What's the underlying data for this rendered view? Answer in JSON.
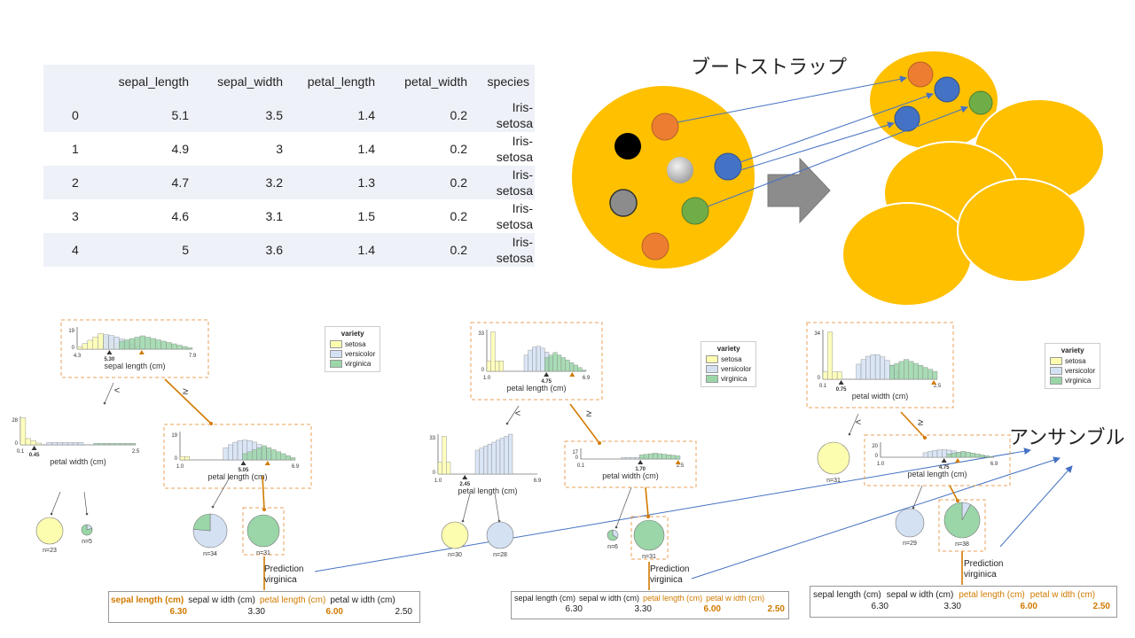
{
  "table": {
    "columns": [
      "",
      "sepal_length",
      "sepal_width",
      "petal_length",
      "petal_width",
      "species"
    ],
    "rows": [
      [
        "0",
        "5.1",
        "3.5",
        "1.4",
        "0.2",
        "Iris-setosa"
      ],
      [
        "1",
        "4.9",
        "3",
        "1.4",
        "0.2",
        "Iris-setosa"
      ],
      [
        "2",
        "4.7",
        "3.2",
        "1.3",
        "0.2",
        "Iris-setosa"
      ],
      [
        "3",
        "4.6",
        "3.1",
        "1.5",
        "0.2",
        "Iris-setosa"
      ],
      [
        "4",
        "5",
        "3.6",
        "1.4",
        "0.2",
        "Iris-setosa"
      ]
    ],
    "species_split": [
      "Iris-",
      "setosa"
    ]
  },
  "bootstrap_label": "ブートストラップ",
  "ensemble_label": "アンサンブル",
  "colors": {
    "bag": "#ffc000",
    "orange_ball": "#ed7d31",
    "blue_ball": "#4472c4",
    "green_ball": "#70ad47",
    "arrow": "#4472c4",
    "setosa": "#fdfdb0",
    "versicolor": "#d4e1f3",
    "virginica": "#9ad6a8",
    "highlight": "#d17a00"
  },
  "legend": {
    "title": "variety",
    "items": [
      "setosa",
      "versicolor",
      "virginica"
    ]
  },
  "split_labels": {
    "lt": "<",
    "ge": "≥"
  },
  "trees": [
    {
      "root": {
        "feature": "sepal length (cm)",
        "ymax": "19",
        "xmin": "4.3",
        "xmax": "7.9",
        "split": "5.30"
      },
      "left": {
        "feature": "petal width (cm)",
        "ymax": "28",
        "xmin": "0.1",
        "xmax": "2.5",
        "split": "0.45"
      },
      "right": {
        "feature": "petal length (cm)",
        "ymax": "19",
        "xmin": "1.0",
        "xmax": "6.9",
        "split": "5.05"
      },
      "leaves": [
        "n=23",
        "n=5",
        "n=34",
        "n=31"
      ],
      "prediction": [
        "Prediction",
        "virginica"
      ],
      "features": {
        "names": [
          "sepal length (cm)",
          "sepal w idth (cm)",
          "petal length (cm)",
          "petal w idth (cm)"
        ],
        "values": [
          "6.30",
          "3.30",
          "6.00",
          "2.50"
        ]
      }
    },
    {
      "root": {
        "feature": "petal length (cm)",
        "ymax": "33",
        "xmin": "1.0",
        "xmax": "6.9",
        "split": "4.75"
      },
      "left": {
        "feature": "petal length (cm)",
        "ymax": "33",
        "xmin": "1.0",
        "xmax": "6.9",
        "split": "2.45"
      },
      "right": {
        "feature": "petal width (cm)",
        "ymax": "17",
        "xmin": "0.1",
        "xmax": "2.5",
        "split": "1.70"
      },
      "leaves": [
        "n=30",
        "n=28",
        "n=6",
        "n=31"
      ],
      "prediction": [
        "Prediction",
        "virginica"
      ],
      "features": {
        "names": [
          "sepal length (cm)",
          "sepal w idth (cm)",
          "petal length (cm)",
          "petal w idth (cm)"
        ],
        "values": [
          "6.30",
          "3.30",
          "6.00",
          "2.50"
        ]
      }
    },
    {
      "root": {
        "feature": "petal width (cm)",
        "ymax": "34",
        "xmin": "0.1",
        "xmax": "2.5",
        "split": "0.75"
      },
      "right": {
        "feature": "petal length (cm)",
        "ymax": "20",
        "xmin": "1.0",
        "xmax": "6.9",
        "split": "4.75"
      },
      "leaves": [
        "n=31",
        "n=29",
        "n=38"
      ],
      "prediction": [
        "Prediction",
        "virginica"
      ],
      "features": {
        "names": [
          "sepal length (cm)",
          "sepal w idth (cm)",
          "petal length (cm)",
          "petal w idth (cm)"
        ],
        "values": [
          "6.30",
          "3.30",
          "6.00",
          "2.50"
        ]
      }
    }
  ]
}
